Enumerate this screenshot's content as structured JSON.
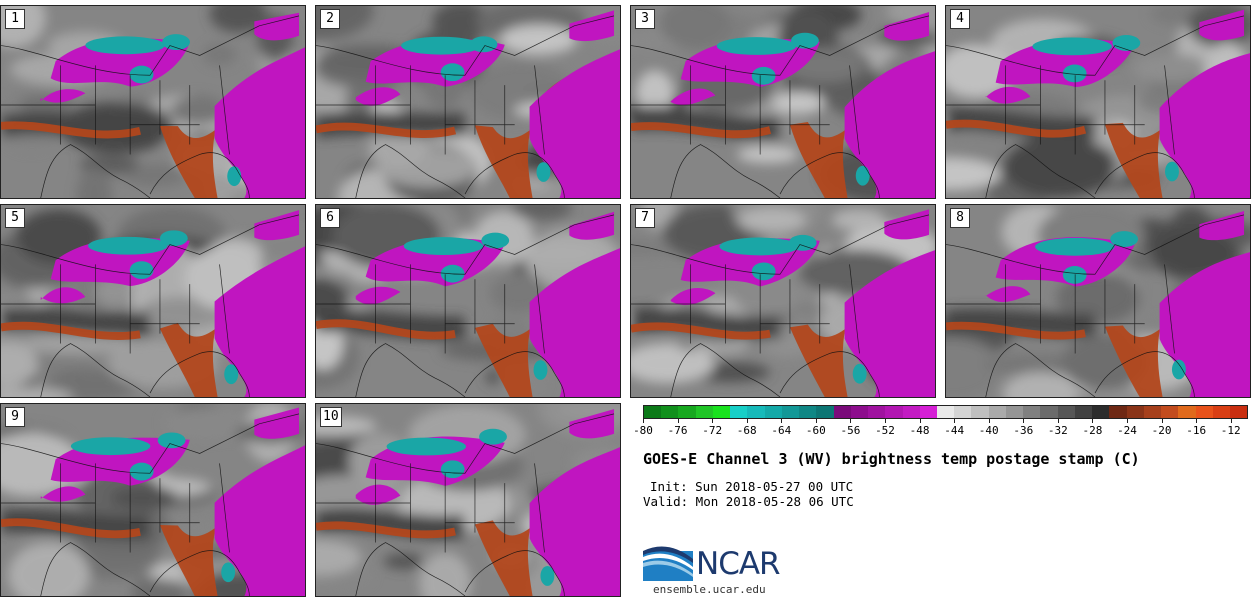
{
  "panels": [
    {
      "label": "1"
    },
    {
      "label": "2"
    },
    {
      "label": "3"
    },
    {
      "label": "4"
    },
    {
      "label": "5"
    },
    {
      "label": "6"
    },
    {
      "label": "7"
    },
    {
      "label": "8"
    },
    {
      "label": "9"
    },
    {
      "label": "10"
    }
  ],
  "colorbar": {
    "colors": [
      "#0c7a18",
      "#11901c",
      "#17a81f",
      "#20c526",
      "#19e21e",
      "#17cfc7",
      "#16baba",
      "#13a9a8",
      "#129897",
      "#0f8785",
      "#0c7674",
      "#7a0a7a",
      "#8d0d8d",
      "#a012a0",
      "#b216b2",
      "#c31bc3",
      "#d51fd5",
      "#e9e9e9",
      "#d4d4d4",
      "#bfbfbf",
      "#aaaaaa",
      "#959595",
      "#808080",
      "#6b6b6b",
      "#565656",
      "#414141",
      "#2c2c2c",
      "#6e2814",
      "#8a3418",
      "#a6401c",
      "#c24c1e",
      "#e06a1c",
      "#e8521a",
      "#d93f14",
      "#c92e10"
    ],
    "tick_labels": [
      "-80",
      "-76",
      "-72",
      "-68",
      "-64",
      "-60",
      "-56",
      "-52",
      "-48",
      "-44",
      "-40",
      "-36",
      "-32",
      "-28",
      "-24",
      "-20",
      "-16",
      "-12"
    ],
    "range": [
      -80,
      -10
    ]
  },
  "title": "GOES-E Channel 3 (WV) brightness temp postage stamp (C)",
  "init": "Init: Sun 2018-05-27 00 UTC",
  "valid": "Valid: Mon 2018-05-28 06 UTC",
  "logo": {
    "text": "NCAR",
    "url": "ensemble.ucar.edu"
  }
}
